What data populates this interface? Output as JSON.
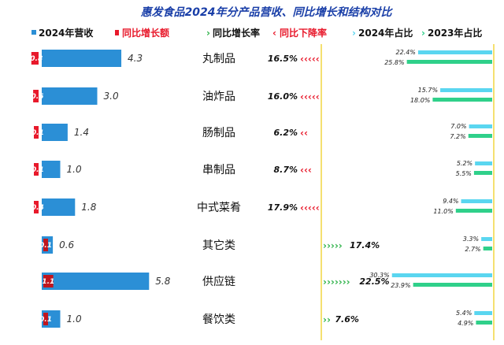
{
  "title": "惠发食品2024年分产品营收、同比增长和结构对比",
  "legend": {
    "revenue": "2024年营收",
    "yoy_change": "同比增长额",
    "growth_rate": "同比增长率",
    "decline_rate": "同比下降率",
    "share_2024": "2024年占比",
    "share_2023": "2023年占比"
  },
  "colors": {
    "title": "#1a3fa8",
    "revenue_bar": "#2b8fd6",
    "change_bar": "#c0161e",
    "change_bar_neg": "#e8192b",
    "decline": "#e8192b",
    "growth": "#2fb34a",
    "share_2024": "#5ad6f0",
    "share_2023": "#2fd08a",
    "divider": "#f2d640"
  },
  "chart_data": {
    "type": "bar",
    "title": "惠发食品2024年分产品营收、同比增长和结构对比",
    "categories": [
      "丸制品",
      "油炸品",
      "肠制品",
      "串制品",
      "中式菜肴",
      "其它类",
      "供应链",
      "餐饮类"
    ],
    "revenue_labels": [
      "4.3",
      "3.0",
      "1.4",
      "1.0",
      "1.8",
      "0.6",
      "5.8",
      "1.0"
    ],
    "change_labels": [
      "-0.8",
      "-0.6",
      "-0.1",
      "-0.1",
      "-0.4",
      "0.1",
      "1.1",
      "0.1"
    ],
    "rate_labels": [
      "16.5%",
      "16.0%",
      "6.2%",
      "8.7%",
      "17.9%",
      "17.4%",
      "22.5%",
      "7.6%"
    ],
    "share_2024_labels": [
      "22.4%",
      "15.7%",
      "7.0%",
      "5.2%",
      "9.4%",
      "3.3%",
      "30.3%",
      "5.4%"
    ],
    "share_2023_labels": [
      "25.8%",
      "18.0%",
      "7.2%",
      "5.5%",
      "11.0%",
      "2.7%",
      "23.9%",
      "4.9%"
    ],
    "series": [
      {
        "name": "2024年营收",
        "values": [
          4.3,
          3.0,
          1.4,
          1.0,
          1.8,
          0.6,
          5.8,
          1.0
        ]
      },
      {
        "name": "同比增长额",
        "values": [
          -0.8,
          -0.6,
          -0.1,
          -0.1,
          -0.4,
          0.1,
          1.1,
          0.1
        ]
      },
      {
        "name": "同比增长率",
        "values": [
          -16.5,
          -16.0,
          -6.2,
          -8.7,
          -17.9,
          17.4,
          22.5,
          7.6
        ]
      },
      {
        "name": "2024年占比",
        "values": [
          22.4,
          15.7,
          7.0,
          5.2,
          9.4,
          3.3,
          30.3,
          5.4
        ]
      },
      {
        "name": "2023年占比",
        "values": [
          25.8,
          18.0,
          7.2,
          5.5,
          11.0,
          2.7,
          23.9,
          4.9
        ]
      }
    ],
    "legend_position": "top"
  }
}
